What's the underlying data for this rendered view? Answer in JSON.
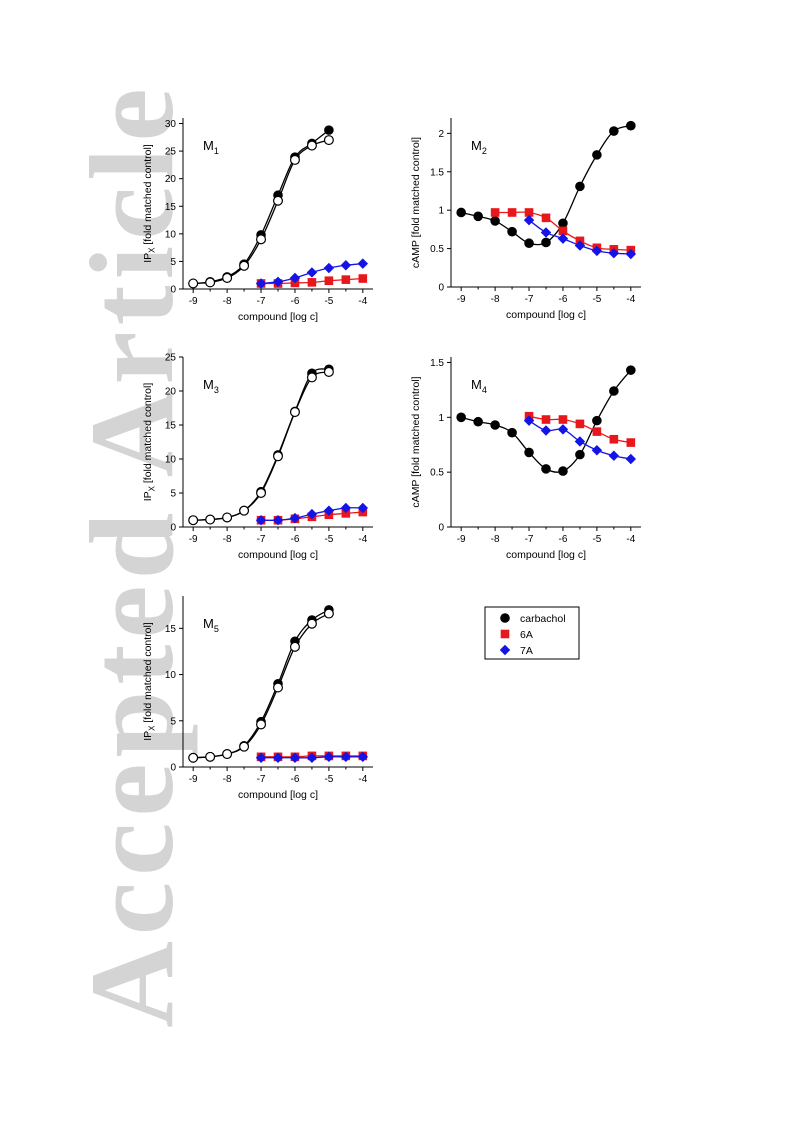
{
  "watermark": "Accepted Article",
  "colors": {
    "carbachol": "#000000",
    "6A": "#e8171c",
    "7A": "#1414e6"
  },
  "legend": {
    "entries": [
      {
        "name": "carbachol",
        "color": "#000000",
        "marker": "circle"
      },
      {
        "name": "6A",
        "color": "#e8171c",
        "marker": "square"
      },
      {
        "name": "7A",
        "color": "#1414e6",
        "marker": "diamond"
      }
    ]
  },
  "chart_data": [
    {
      "id": "m1",
      "type": "scatter",
      "label_main": "M",
      "label_sub": "1",
      "xlabel": "compound [log c]",
      "ylabel_main": "IP",
      "ylabel_sub": "X",
      "ylabel_rest": " [fold matched control]",
      "xlim": [
        -9.3,
        -3.7
      ],
      "ylim": [
        0,
        31
      ],
      "xticks": [
        -9,
        -8,
        -7,
        -6,
        -5,
        -4
      ],
      "yticks": [
        0,
        5,
        10,
        15,
        20,
        25,
        30
      ],
      "series": [
        {
          "name": "carbachol",
          "x": [
            -9,
            -8.5,
            -8,
            -7.5,
            -7,
            -6.5,
            -6,
            -5.5,
            -5
          ],
          "y": [
            1.0,
            1.3,
            2.2,
            4.5,
            9.8,
            17.0,
            23.9,
            26.4,
            28.8
          ]
        },
        {
          "name": "carbachol",
          "open": true,
          "x": [
            -9,
            -8.5,
            -8,
            -7.5,
            -7,
            -6.5,
            -6,
            -5.5,
            -5
          ],
          "y": [
            1.0,
            1.2,
            2.0,
            4.2,
            9.0,
            16.0,
            23.4,
            26.0,
            27.0
          ]
        },
        {
          "name": "6A",
          "x": [
            -7,
            -6.5,
            -6,
            -5.5,
            -5,
            -4.5,
            -4
          ],
          "y": [
            1.0,
            1.0,
            1.1,
            1.2,
            1.5,
            1.7,
            1.9
          ]
        },
        {
          "name": "7A",
          "x": [
            -7,
            -6.5,
            -6,
            -5.5,
            -5,
            -4.5,
            -4
          ],
          "y": [
            1.0,
            1.3,
            2.0,
            3.0,
            3.8,
            4.3,
            4.6
          ]
        }
      ]
    },
    {
      "id": "m2",
      "type": "scatter",
      "label_main": "M",
      "label_sub": "2",
      "xlabel": "compound [log c]",
      "ylabel_main": "cAMP [fold matched control]",
      "ylabel_sub": "",
      "ylabel_rest": "",
      "xlim": [
        -9.3,
        -3.7
      ],
      "ylim": [
        0,
        2.2
      ],
      "xticks": [
        -9,
        -8,
        -7,
        -6,
        -5,
        -4
      ],
      "yticks": [
        0,
        0.5,
        1,
        1.5,
        2
      ],
      "series": [
        {
          "name": "carbachol",
          "x": [
            -9,
            -8.5,
            -8,
            -7.5,
            -7,
            -6.5,
            -6,
            -5.5,
            -5,
            -4.5,
            -4
          ],
          "y": [
            0.97,
            0.92,
            0.86,
            0.72,
            0.57,
            0.58,
            0.83,
            1.31,
            1.72,
            2.03,
            2.1
          ]
        },
        {
          "name": "6A",
          "x": [
            -8,
            -7.5,
            -7,
            -6.5,
            -6,
            -5.5,
            -5,
            -4.5,
            -4
          ],
          "y": [
            0.97,
            0.97,
            0.97,
            0.9,
            0.73,
            0.6,
            0.51,
            0.49,
            0.48
          ]
        },
        {
          "name": "7A",
          "x": [
            -7,
            -6.5,
            -6,
            -5.5,
            -5,
            -4.5,
            -4
          ],
          "y": [
            0.87,
            0.71,
            0.63,
            0.54,
            0.47,
            0.44,
            0.43
          ]
        }
      ]
    },
    {
      "id": "m3",
      "type": "scatter",
      "label_main": "M",
      "label_sub": "3",
      "xlabel": "compound [log c]",
      "ylabel_main": "IP",
      "ylabel_sub": "X",
      "ylabel_rest": " [fold matched control]",
      "xlim": [
        -9.3,
        -3.7
      ],
      "ylim": [
        0,
        25
      ],
      "xticks": [
        -9,
        -8,
        -7,
        -6,
        -5,
        -4
      ],
      "yticks": [
        0,
        5,
        10,
        15,
        20,
        25
      ],
      "series": [
        {
          "name": "carbachol",
          "x": [
            -9,
            -8.5,
            -8,
            -7.5,
            -7,
            -6.5,
            -6,
            -5.5,
            -5
          ],
          "y": [
            1.0,
            1.1,
            1.4,
            2.4,
            5.2,
            10.6,
            17.0,
            22.6,
            23.2
          ]
        },
        {
          "name": "carbachol",
          "open": true,
          "x": [
            -9,
            -8.5,
            -8,
            -7.5,
            -7,
            -6.5,
            -6,
            -5.5,
            -5
          ],
          "y": [
            1.0,
            1.1,
            1.4,
            2.4,
            5.0,
            10.4,
            16.9,
            22.0,
            22.8
          ]
        },
        {
          "name": "6A",
          "x": [
            -7,
            -6.5,
            -6,
            -5.5,
            -5,
            -4.5,
            -4
          ],
          "y": [
            1.0,
            1.0,
            1.2,
            1.5,
            1.8,
            2.0,
            2.2
          ]
        },
        {
          "name": "7A",
          "x": [
            -7,
            -6.5,
            -6,
            -5.5,
            -5,
            -4.5,
            -4
          ],
          "y": [
            1.0,
            1.0,
            1.3,
            1.9,
            2.4,
            2.8,
            2.8
          ]
        }
      ]
    },
    {
      "id": "m4",
      "type": "scatter",
      "label_main": "M",
      "label_sub": "4",
      "xlabel": "compound [log c]",
      "ylabel_main": "cAMP [fold matched control]",
      "ylabel_sub": "",
      "ylabel_rest": "",
      "xlim": [
        -9.3,
        -3.7
      ],
      "ylim": [
        0,
        1.55
      ],
      "xticks": [
        -9,
        -8,
        -7,
        -6,
        -5,
        -4
      ],
      "yticks": [
        0,
        0.5,
        1,
        1.5
      ],
      "series": [
        {
          "name": "carbachol",
          "x": [
            -9,
            -8.5,
            -8,
            -7.5,
            -7,
            -6.5,
            -6,
            -5.5,
            -5,
            -4.5,
            -4
          ],
          "y": [
            1.0,
            0.96,
            0.93,
            0.86,
            0.68,
            0.53,
            0.51,
            0.66,
            0.97,
            1.24,
            1.43
          ]
        },
        {
          "name": "6A",
          "x": [
            -7,
            -6.5,
            -6,
            -5.5,
            -5,
            -4.5,
            -4
          ],
          "y": [
            1.01,
            0.98,
            0.98,
            0.94,
            0.87,
            0.8,
            0.77
          ]
        },
        {
          "name": "7A",
          "x": [
            -7,
            -6.5,
            -6,
            -5.5,
            -5,
            -4.5,
            -4
          ],
          "y": [
            0.97,
            0.88,
            0.89,
            0.78,
            0.7,
            0.65,
            0.62
          ]
        }
      ]
    },
    {
      "id": "m5",
      "type": "scatter",
      "label_main": "M",
      "label_sub": "5",
      "xlabel": "compound [log c]",
      "ylabel_main": "IP",
      "ylabel_sub": "X",
      "ylabel_rest": " [fold matched control]",
      "xlim": [
        -9.3,
        -3.7
      ],
      "ylim": [
        0,
        18.5
      ],
      "xticks": [
        -9,
        -8,
        -7,
        -6,
        -5,
        -4
      ],
      "yticks": [
        0,
        5,
        10,
        15
      ],
      "series": [
        {
          "name": "carbachol",
          "x": [
            -9,
            -8.5,
            -8,
            -7.5,
            -7,
            -6.5,
            -6,
            -5.5,
            -5
          ],
          "y": [
            1.0,
            1.1,
            1.4,
            2.3,
            4.9,
            9.0,
            13.6,
            15.9,
            17.0
          ]
        },
        {
          "name": "carbachol",
          "open": true,
          "x": [
            -9,
            -8.5,
            -8,
            -7.5,
            -7,
            -6.5,
            -6,
            -5.5,
            -5
          ],
          "y": [
            1.0,
            1.1,
            1.4,
            2.2,
            4.6,
            8.6,
            13.0,
            15.5,
            16.6
          ]
        },
        {
          "name": "6A",
          "x": [
            -7,
            -6.5,
            -6,
            -5.5,
            -5,
            -4.5,
            -4
          ],
          "y": [
            1.1,
            1.1,
            1.1,
            1.2,
            1.2,
            1.2,
            1.2
          ]
        },
        {
          "name": "7A",
          "x": [
            -7,
            -6.5,
            -6,
            -5.5,
            -5,
            -4.5,
            -4
          ],
          "y": [
            1.0,
            1.0,
            1.0,
            1.0,
            1.1,
            1.1,
            1.1
          ]
        }
      ]
    }
  ]
}
